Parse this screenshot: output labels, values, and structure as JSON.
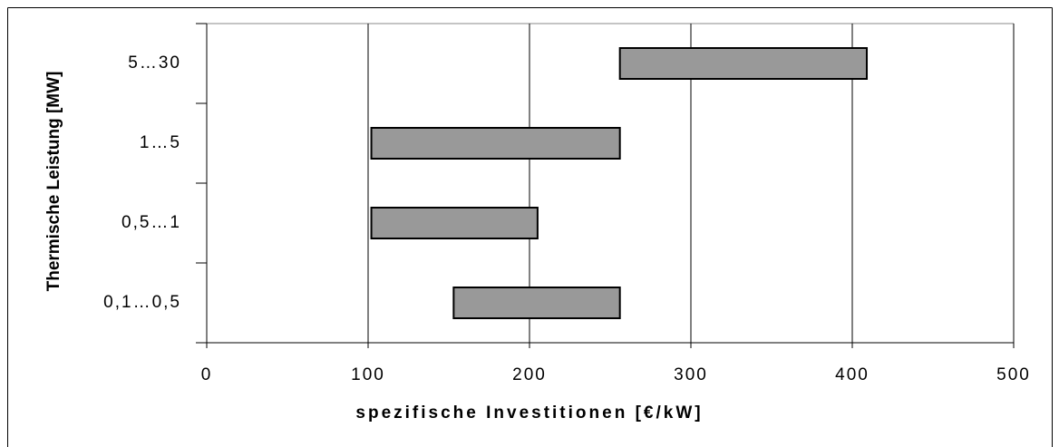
{
  "chart_data": {
    "type": "floating-bar",
    "x_label": "spezifische Investitionen [€/kW]",
    "y_label": "Thermische Leistung [MW]",
    "categories": [
      "5…30",
      "1…5",
      "0,5…1",
      "0,1…0,5"
    ],
    "values": [
      [
        256,
        409
      ],
      [
        102,
        256
      ],
      [
        102,
        205
      ],
      [
        153,
        256
      ]
    ],
    "color": "#999999",
    "xlim": [
      0,
      500
    ],
    "xticks": [
      0,
      100,
      200,
      300,
      400,
      500
    ],
    "grid": true
  }
}
